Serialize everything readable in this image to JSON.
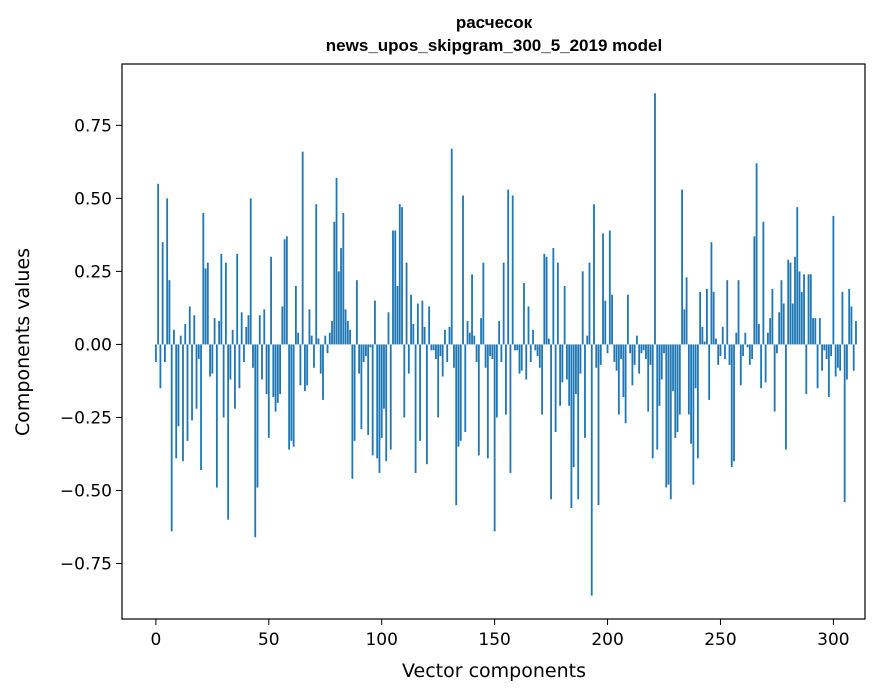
{
  "chart_data": {
    "type": "bar",
    "title": "расчесок",
    "subtitle": "news_upos_skipgram_300_5_2019 model",
    "xlabel": "Vector components",
    "ylabel": "Components values",
    "xlim": [
      -15,
      314
    ],
    "ylim": [
      -0.94,
      0.96
    ],
    "x_ticks": [
      0,
      50,
      100,
      150,
      200,
      250,
      300
    ],
    "y_ticks": [
      -0.75,
      -0.5,
      -0.25,
      0.0,
      0.25,
      0.5,
      0.75
    ],
    "x_tick_labels": [
      "0",
      "50",
      "100",
      "150",
      "200",
      "250",
      "300"
    ],
    "y_tick_labels": [
      "−0.75",
      "−0.50",
      "−0.25",
      "0.00",
      "0.25",
      "0.50",
      "0.75"
    ],
    "bar_color": "#1f77b4",
    "grid": false,
    "legend": "none",
    "values": [
      -0.06,
      0.55,
      -0.15,
      0.35,
      -0.06,
      0.5,
      0.22,
      -0.64,
      0.05,
      -0.39,
      -0.28,
      0.03,
      -0.4,
      0.07,
      -0.33,
      0.13,
      -0.26,
      0.1,
      -0.22,
      -0.05,
      -0.43,
      0.45,
      0.26,
      0.28,
      -0.11,
      -0.1,
      0.09,
      -0.49,
      0.08,
      0.31,
      -0.25,
      0.28,
      -0.6,
      -0.12,
      0.05,
      -0.22,
      0.31,
      -0.15,
      0.11,
      -0.06,
      0.06,
      0.1,
      0.5,
      -0.08,
      -0.66,
      -0.49,
      0.1,
      -0.12,
      0.12,
      -0.17,
      -0.32,
      0.3,
      -0.18,
      -0.23,
      -0.2,
      -0.17,
      0.13,
      0.36,
      0.37,
      -0.36,
      -0.33,
      -0.35,
      0.2,
      0.04,
      -0.14,
      0.66,
      -0.16,
      -0.14,
      0.12,
      0.03,
      -0.08,
      0.48,
      0.02,
      -0.1,
      -0.19,
      0.03,
      -0.03,
      0.04,
      0.08,
      0.42,
      0.57,
      0.25,
      0.33,
      0.45,
      0.12,
      0.08,
      0.05,
      -0.46,
      -0.33,
      0.22,
      -0.1,
      -0.29,
      -0.06,
      -0.04,
      -0.31,
      -0.01,
      -0.38,
      0.15,
      -0.39,
      -0.44,
      -0.32,
      -0.22,
      -0.4,
      0.11,
      -0.36,
      0.39,
      0.39,
      0.2,
      0.48,
      0.47,
      -0.25,
      0.28,
      -0.1,
      0.17,
      0.07,
      -0.44,
      0.14,
      -0.33,
      0.15,
      0.06,
      -0.41,
      0.13,
      -0.02,
      -0.02,
      -0.05,
      -0.25,
      -0.04,
      -0.11,
      0.05,
      -0.06,
      0.06,
      0.67,
      -0.08,
      -0.55,
      -0.35,
      -0.33,
      0.51,
      -0.3,
      0.08,
      0.04,
      0.24,
      0.03,
      -0.06,
      -0.38,
      0.09,
      0.28,
      -0.08,
      -0.39,
      -0.04,
      -0.05,
      -0.64,
      -0.25,
      0.08,
      -0.06,
      0.28,
      -0.24,
      0.53,
      -0.44,
      0.51,
      -0.02,
      -0.02,
      -0.1,
      -0.09,
      0.21,
      -0.12,
      0.13,
      -0.06,
      0.05,
      -0.02,
      -0.04,
      -0.08,
      -0.24,
      0.31,
      0.3,
      0.02,
      -0.53,
      0.33,
      -0.3,
      0.28,
      -0.21,
      -0.13,
      0.2,
      -0.12,
      -0.21,
      -0.56,
      -0.42,
      -0.17,
      -0.53,
      -0.1,
      0.25,
      -0.32,
      0.03,
      0.28,
      -0.86,
      0.48,
      -0.08,
      -0.55,
      -0.07,
      0.38,
      0.15,
      -0.03,
      0.39,
      0.17,
      -0.06,
      -0.09,
      -0.24,
      -0.05,
      -0.18,
      -0.27,
      0.17,
      -0.03,
      -0.14,
      -0.07,
      0.03,
      -0.1,
      -0.03,
      -0.02,
      -0.05,
      -0.23,
      -0.07,
      -0.39,
      0.86,
      -0.36,
      -0.21,
      -0.12,
      -0.03,
      -0.49,
      -0.48,
      -0.53,
      -0.16,
      -0.32,
      -0.3,
      -0.24,
      0.53,
      0.12,
      0.23,
      -0.24,
      -0.34,
      -0.48,
      -0.15,
      -0.39,
      0.18,
      0.06,
      0.01,
      0.19,
      -0.19,
      0.35,
      0.18,
      0.02,
      -0.07,
      -0.04,
      0.06,
      -0.05,
      0.22,
      -0.07,
      -0.42,
      -0.4,
      0.04,
      0.22,
      -0.14,
      -0.04,
      0.04,
      -0.01,
      -0.07,
      -0.05,
      0.37,
      0.62,
      0.07,
      -0.15,
      0.42,
      -0.13,
      0.04,
      0.09,
      0.19,
      -0.23,
      -0.03,
      0.11,
      0.22,
      0.14,
      -0.36,
      0.29,
      0.28,
      0.14,
      0.3,
      0.47,
      0.25,
      0.18,
      0.24,
      -0.17,
      0.24,
      0.24,
      0.09,
      0.09,
      -0.15,
      0.09,
      -0.09,
      -0.02,
      -0.05,
      -0.18,
      -0.04,
      0.44,
      -0.11,
      -0.08,
      -0.09,
      0.18,
      -0.54,
      -0.12,
      0.19,
      0.13,
      -0.09,
      0.08
    ]
  }
}
